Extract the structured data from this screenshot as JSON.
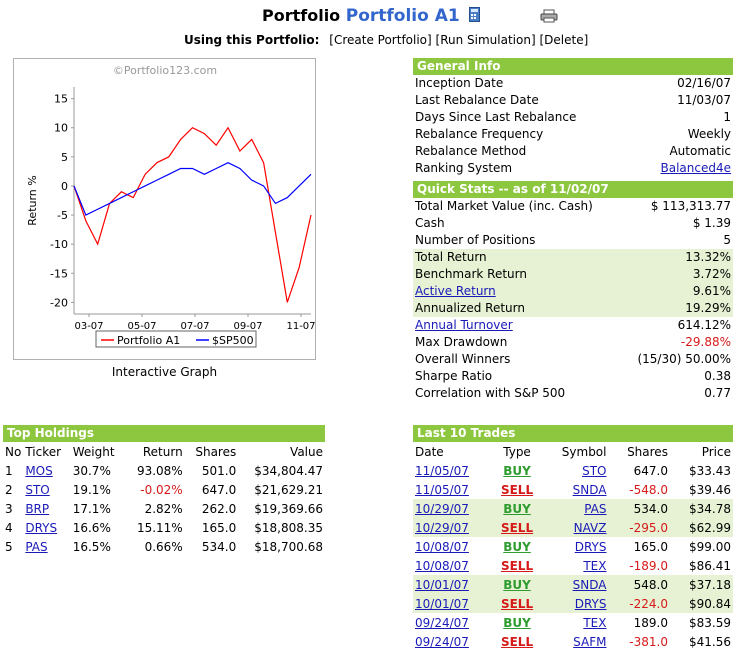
{
  "header": {
    "title_prefix": "Portfolio",
    "portfolio_name": "Portfolio A1",
    "using_label": "Using this Portfolio:",
    "actions": [
      "[Create Portfolio]",
      "[Run Simulation]",
      "[Delete]"
    ],
    "icons": [
      "calculator-icon",
      "printer-icon"
    ]
  },
  "graph": {
    "watermark": "©Portfolio123.com",
    "caption": "Interactive Graph",
    "legend": [
      "Portfolio A1",
      "$SP500"
    ],
    "colors": {
      "portfolio": "#ff0000",
      "benchmark": "#0000ff"
    }
  },
  "chart_data": {
    "type": "line",
    "ylabel": "Return %",
    "ylim": [
      -22,
      17
    ],
    "yticks": [
      "15",
      "10",
      "5",
      "0",
      "-5",
      "-10",
      "-15",
      "-20"
    ],
    "xticks": [
      "03-07",
      "05-07",
      "07-07",
      "09-07",
      "11-07"
    ],
    "x": [
      0,
      2,
      4,
      6,
      8,
      10,
      12,
      14,
      16,
      18,
      20,
      22,
      24,
      26,
      28,
      30,
      32,
      34,
      36,
      38,
      40
    ],
    "series": [
      {
        "name": "Portfolio A1",
        "values": [
          0,
          -6,
          -10,
          -3,
          -1,
          -2,
          2,
          4,
          5,
          8,
          10,
          9,
          7,
          10,
          6,
          8,
          4,
          -8,
          -20,
          -14,
          -5
        ]
      },
      {
        "name": "$SP500",
        "values": [
          0,
          -5,
          -4,
          -3,
          -2,
          -1,
          0,
          1,
          2,
          3,
          3,
          2,
          3,
          4,
          3,
          1,
          0,
          -3,
          -2,
          0,
          2
        ]
      }
    ]
  },
  "general": {
    "title": "General Info",
    "rows": [
      {
        "label": "Inception Date",
        "value": "02/16/07"
      },
      {
        "label": "Last Rebalance Date",
        "value": "11/03/07"
      },
      {
        "label": "Days Since Last Rebalance",
        "value": "1"
      },
      {
        "label": "Rebalance Frequency",
        "value": "Weekly"
      },
      {
        "label": "Rebalance Method",
        "value": "Automatic"
      },
      {
        "label": "Ranking System",
        "value": "Balanced4e"
      }
    ]
  },
  "quick": {
    "title": "Quick Stats -- as of 11/02/07",
    "rows": [
      {
        "label": "Total Market Value (inc. Cash)",
        "value": "$ 113,313.77"
      },
      {
        "label": "Cash",
        "value": "$ 1.39"
      },
      {
        "label": "Number of Positions",
        "value": "5"
      },
      {
        "label": "Total Return",
        "value": "13.32%"
      },
      {
        "label": "Benchmark Return",
        "value": "3.72%"
      },
      {
        "label": "Active Return",
        "value": "9.61%"
      },
      {
        "label": "Annualized Return",
        "value": "19.29%"
      },
      {
        "label": "Annual Turnover",
        "value": "614.12%"
      },
      {
        "label": "Max Drawdown",
        "value": "-29.88%"
      },
      {
        "label": "Overall Winners",
        "value": "(15/30) 50.00%"
      },
      {
        "label": "Sharpe Ratio",
        "value": "0.38"
      },
      {
        "label": "Correlation with S&P 500",
        "value": "0.77"
      }
    ]
  },
  "holdings": {
    "title": "Top Holdings",
    "headers": [
      "No",
      "Ticker",
      "Weight",
      "Return",
      "Shares",
      "Value"
    ],
    "rows": [
      {
        "no": "1",
        "ticker": "MOS",
        "weight": "30.7%",
        "ret": "93.08%",
        "shares": "501.0",
        "value": "$34,804.47"
      },
      {
        "no": "2",
        "ticker": "STO",
        "weight": "19.1%",
        "ret": "-0.02%",
        "shares": "647.0",
        "value": "$21,629.21"
      },
      {
        "no": "3",
        "ticker": "BRP",
        "weight": "17.1%",
        "ret": "2.82%",
        "shares": "262.0",
        "value": "$19,369.66"
      },
      {
        "no": "4",
        "ticker": "DRYS",
        "weight": "16.6%",
        "ret": "15.11%",
        "shares": "165.0",
        "value": "$18,808.35"
      },
      {
        "no": "5",
        "ticker": "PAS",
        "weight": "16.5%",
        "ret": "0.66%",
        "shares": "534.0",
        "value": "$18,700.68"
      }
    ]
  },
  "trades": {
    "title": "Last 10 Trades",
    "headers": [
      "Date",
      "Type",
      "Symbol",
      "Shares",
      "Price"
    ],
    "rows": [
      {
        "date": "11/05/07",
        "type": "BUY",
        "symbol": "STO",
        "shares": "647.0",
        "price": "$33.43"
      },
      {
        "date": "11/05/07",
        "type": "SELL",
        "symbol": "SNDA",
        "shares": "-548.0",
        "price": "$39.46"
      },
      {
        "date": "10/29/07",
        "type": "BUY",
        "symbol": "PAS",
        "shares": "534.0",
        "price": "$34.78"
      },
      {
        "date": "10/29/07",
        "type": "SELL",
        "symbol": "NAVZ",
        "shares": "-295.0",
        "price": "$62.99"
      },
      {
        "date": "10/08/07",
        "type": "BUY",
        "symbol": "DRYS",
        "shares": "165.0",
        "price": "$99.00"
      },
      {
        "date": "10/08/07",
        "type": "SELL",
        "symbol": "TEX",
        "shares": "-189.0",
        "price": "$86.41"
      },
      {
        "date": "10/01/07",
        "type": "BUY",
        "symbol": "SNDA",
        "shares": "548.0",
        "price": "$37.18"
      },
      {
        "date": "10/01/07",
        "type": "SELL",
        "symbol": "DRYS",
        "shares": "-224.0",
        "price": "$90.84"
      },
      {
        "date": "09/24/07",
        "type": "BUY",
        "symbol": "TEX",
        "shares": "189.0",
        "price": "$83.59"
      },
      {
        "date": "09/24/07",
        "type": "SELL",
        "symbol": "SAFM",
        "shares": "-381.0",
        "price": "$41.56"
      }
    ]
  }
}
